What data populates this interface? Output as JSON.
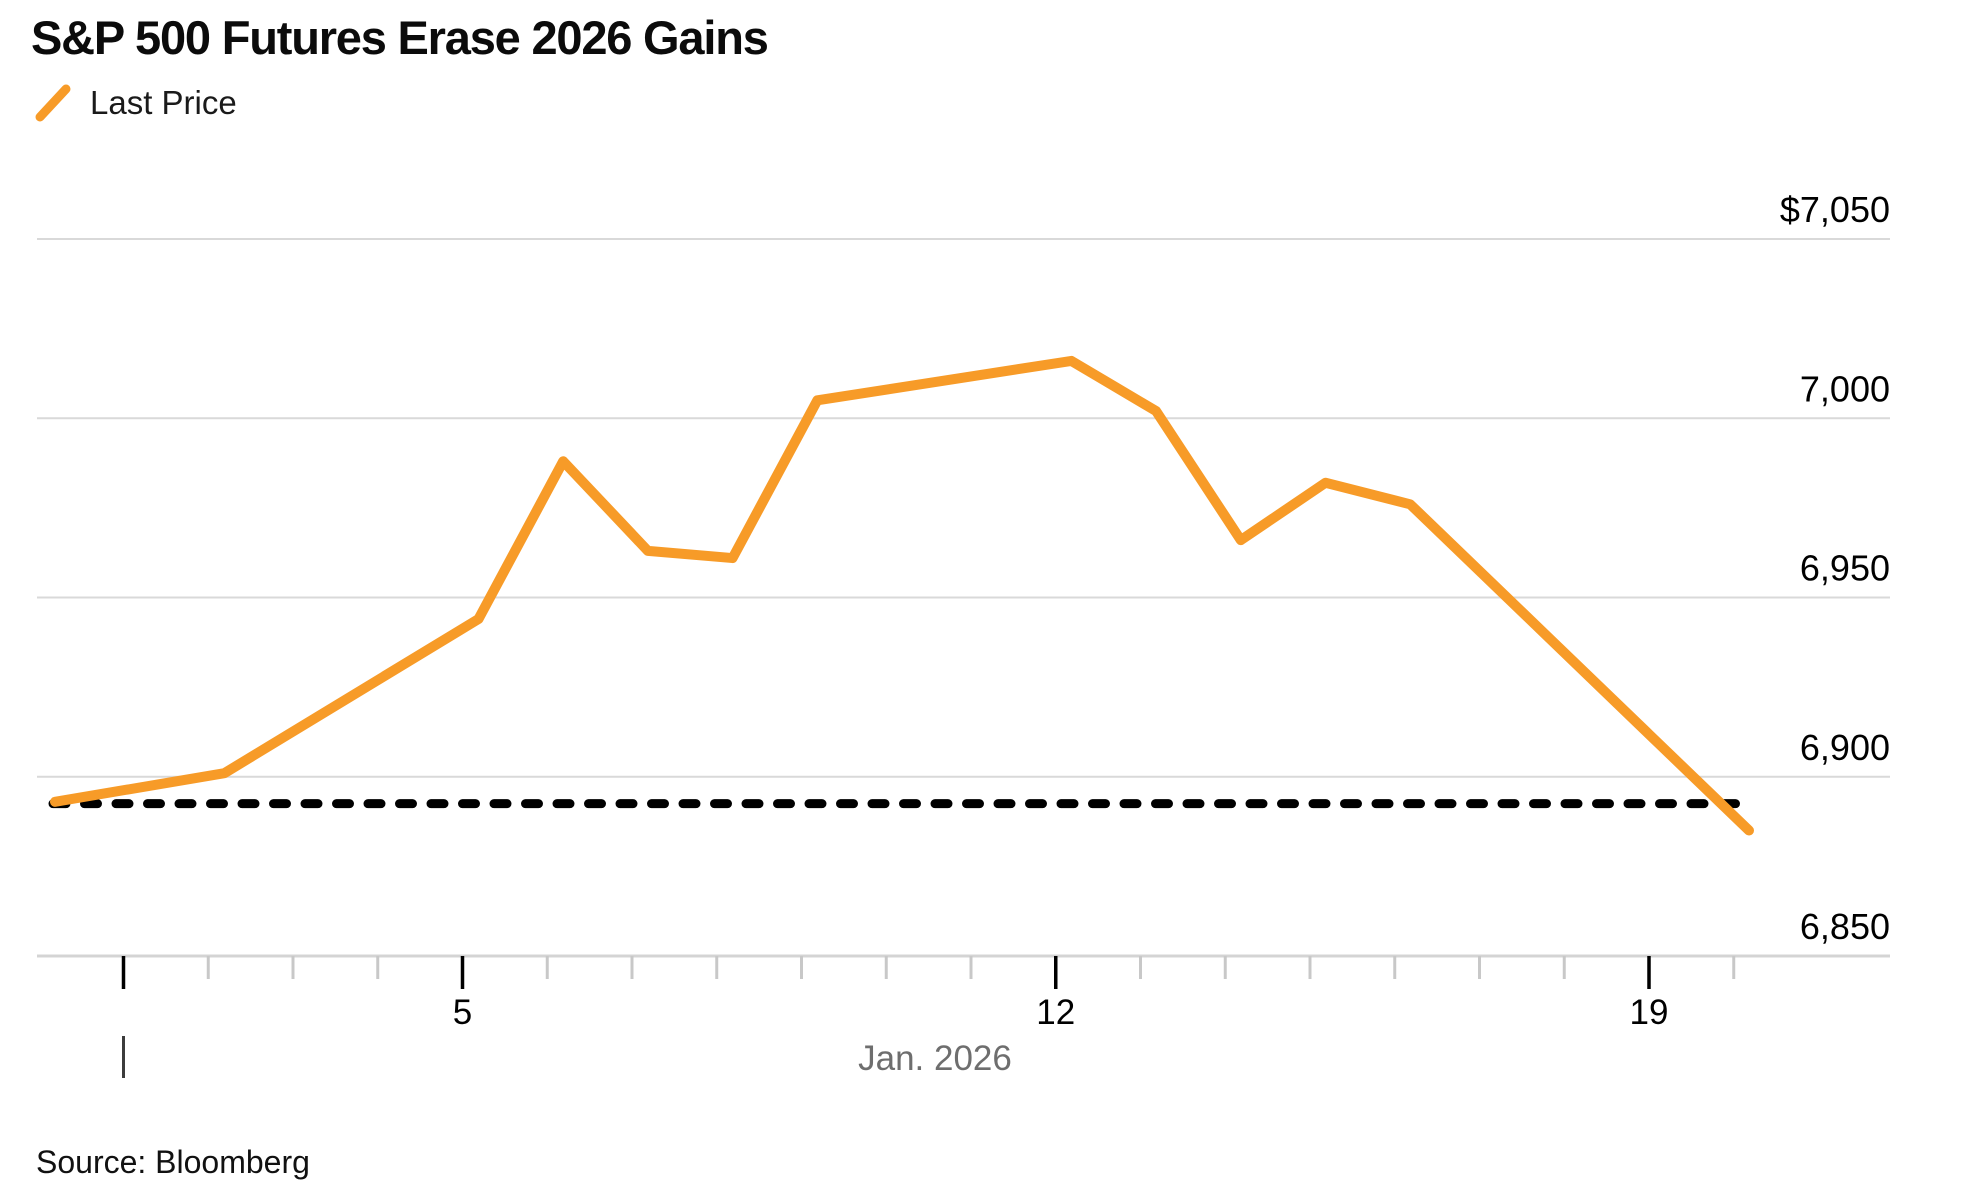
{
  "header": {
    "title": "S&P 500 Futures Erase 2026 Gains"
  },
  "legend": {
    "label": "Last Price",
    "swatch_color": "#F79B28"
  },
  "source": {
    "text": "Source: Bloomberg"
  },
  "chart_data": {
    "type": "line",
    "title": "S&P 500 Futures Erase 2026 Gains",
    "legend_position": "top-left",
    "grid": "horizontal",
    "series": [
      {
        "name": "Last Price",
        "color": "#F79B28",
        "dates": [
          "Dec 31",
          "Jan 2",
          "Jan 5",
          "Jan 6",
          "Jan 7",
          "Jan 8",
          "Jan 9",
          "Jan 12",
          "Jan 13",
          "Jan 14",
          "Jan 15",
          "Jan 16",
          "Jan 20"
        ],
        "day_offsets": [
          0,
          2,
          5,
          6,
          7,
          8,
          9,
          12,
          13,
          14,
          15,
          16,
          20
        ],
        "values": [
          6893,
          6901,
          6944,
          6988,
          6963,
          6961,
          7005,
          7016,
          7002,
          6966,
          6982,
          6976,
          6885
        ]
      }
    ],
    "reference_line": {
      "style": "dashed",
      "color": "#000000",
      "value": 6892.5
    },
    "y_axis": {
      "side": "right",
      "range": [
        6850,
        7050
      ],
      "ticks": [
        {
          "label": "$7,050",
          "value": 7050
        },
        {
          "label": "7,000",
          "value": 7000
        },
        {
          "label": "6,950",
          "value": 6950
        },
        {
          "label": "6,900",
          "value": 6900
        },
        {
          "label": "6,850",
          "value": 6850
        }
      ]
    },
    "x_axis": {
      "month_label": "Jan. 2026",
      "tick_days": [
        1,
        2,
        3,
        4,
        5,
        6,
        7,
        8,
        9,
        10,
        11,
        12,
        13,
        14,
        15,
        16,
        17,
        18,
        19,
        20
      ],
      "major_tick_days": [
        1,
        5,
        12,
        19
      ],
      "labeled_ticks": [
        {
          "day": 5,
          "label": "5"
        },
        {
          "day": 12,
          "label": "12"
        },
        {
          "day": 19,
          "label": "19"
        }
      ]
    }
  }
}
